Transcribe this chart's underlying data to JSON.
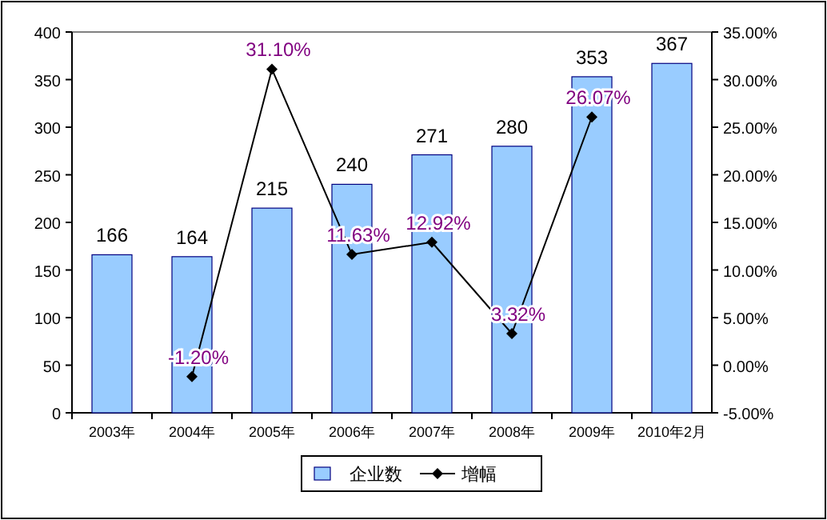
{
  "chart_data": {
    "type": "bar",
    "categories": [
      "2003年",
      "2004年",
      "2005年",
      "2006年",
      "2007年",
      "2008年",
      "2009年",
      "2010年2月"
    ],
    "series": [
      {
        "name": "企业数",
        "color": "#99ccff",
        "values": [
          166,
          164,
          215,
          240,
          271,
          280,
          353,
          367
        ],
        "value_labels": [
          "166",
          "164",
          "215",
          "240",
          "271",
          "280",
          "353",
          "367"
        ]
      },
      {
        "name": "增幅",
        "type": "line",
        "axis": "y2",
        "color": "#000000",
        "values": [
          null,
          -1.2,
          31.1,
          11.63,
          12.92,
          3.32,
          26.07,
          null
        ],
        "value_labels": [
          null,
          "-1.20%",
          "31.10%",
          "11.63%",
          "12.92%",
          "3.32%",
          "26.07%",
          null
        ]
      }
    ],
    "ylim": [
      0,
      400
    ],
    "yticks": [
      0,
      50,
      100,
      150,
      200,
      250,
      300,
      350,
      400
    ],
    "y2lim": [
      -5,
      35
    ],
    "y2ticks": [
      {
        "value": -5,
        "label": "-5.00%"
      },
      {
        "value": 0,
        "label": "0.00%"
      },
      {
        "value": 5,
        "label": "5.00%"
      },
      {
        "value": 10,
        "label": "10.00%"
      },
      {
        "value": 15,
        "label": "15.00%"
      },
      {
        "value": 20,
        "label": "20.00%"
      },
      {
        "value": 25,
        "label": "25.00%"
      },
      {
        "value": 30,
        "label": "30.00%"
      },
      {
        "value": 35,
        "label": "35.00%"
      }
    ],
    "legend": "bottom",
    "marker": "diamond",
    "line_style": "solid",
    "grid": false
  }
}
